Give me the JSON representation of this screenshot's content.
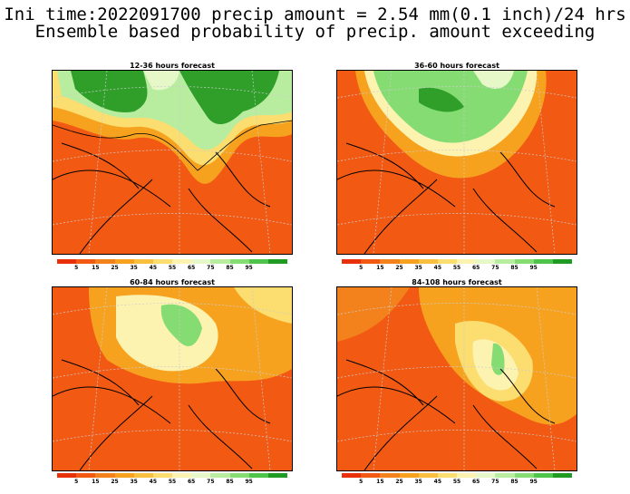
{
  "title": {
    "line1": "Ini time:2022091700 precip amount = 2.54 mm(0.1 inch)/24 hrs",
    "line2": "Ensemble based probability of precip. amount exceeding"
  },
  "panels": [
    {
      "title": "12-36 hours forecast"
    },
    {
      "title": "36-60 hours forecast"
    },
    {
      "title": "60-84 hours forecast"
    },
    {
      "title": "84-108 hours forecast"
    }
  ],
  "colorbar": {
    "colors": [
      "#e8300a",
      "#f25a14",
      "#f4821c",
      "#f7a21f",
      "#f9c040",
      "#fbdd70",
      "#fdf3b0",
      "#e6f7c8",
      "#b8eda0",
      "#84dc72",
      "#4fc44a",
      "#1f9a22"
    ],
    "labels": [
      "5",
      "15",
      "25",
      "35",
      "45",
      "55",
      "65",
      "75",
      "85",
      "95"
    ]
  }
}
